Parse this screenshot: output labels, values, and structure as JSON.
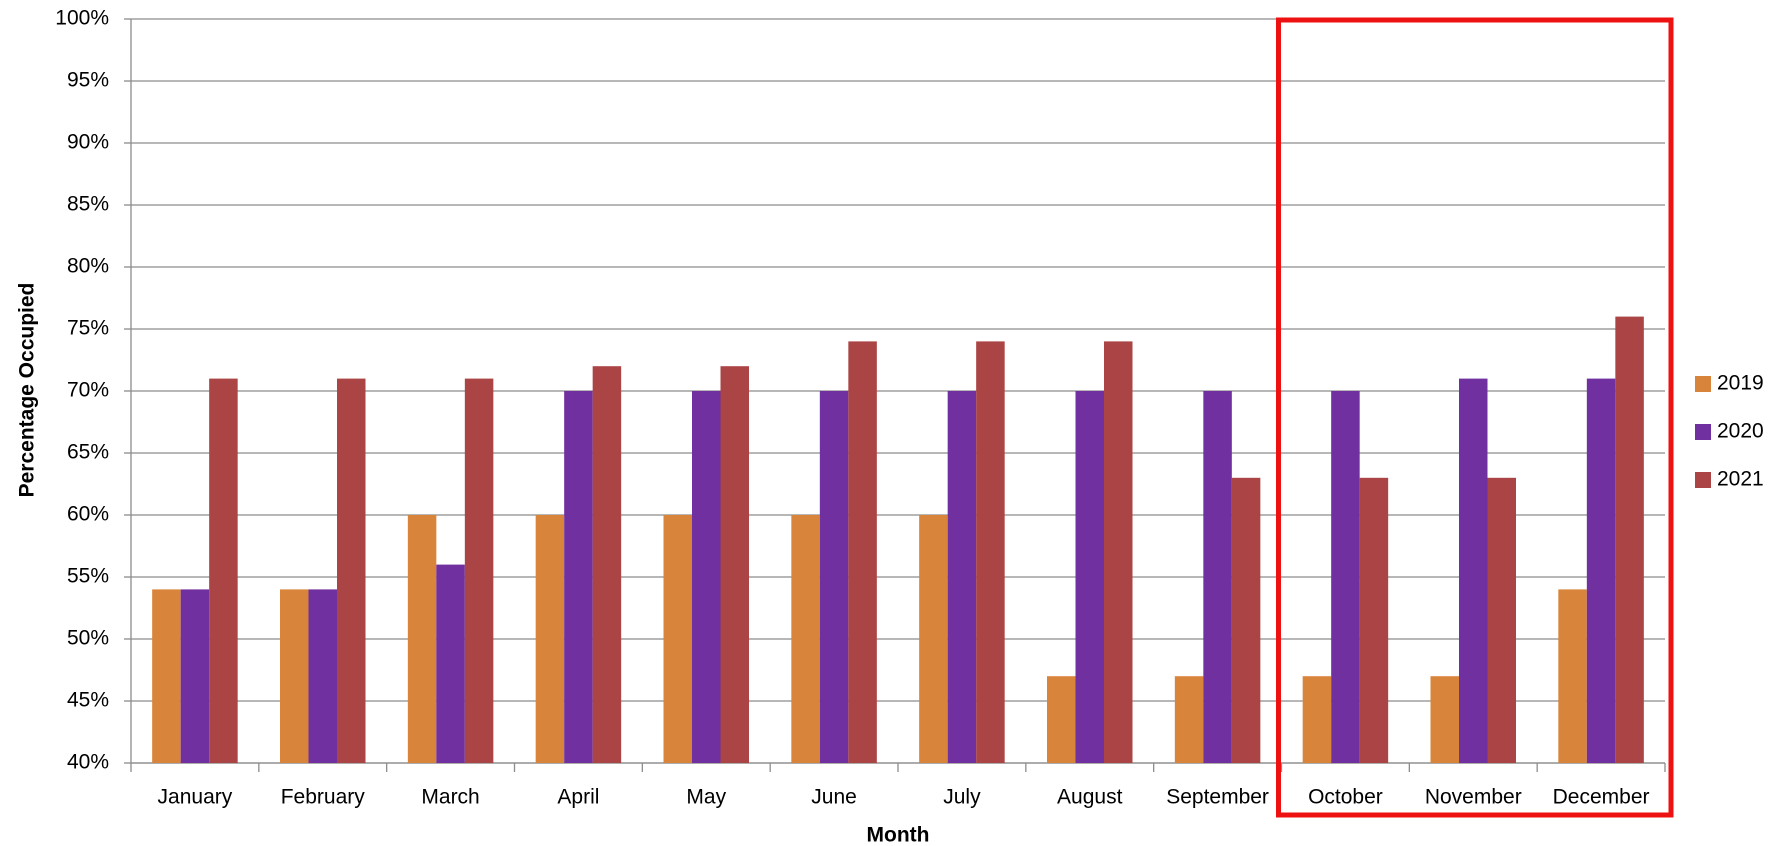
{
  "chart_data": {
    "type": "bar",
    "x_label": "Month",
    "y_label": "Percentage Occupied",
    "categories": [
      "January",
      "February",
      "March",
      "April",
      "May",
      "June",
      "July",
      "August",
      "September",
      "October",
      "November",
      "December"
    ],
    "series": [
      {
        "name": "2019",
        "color": "#d9843b",
        "values": [
          54,
          54,
          60,
          60,
          60,
          60,
          60,
          47,
          47,
          47,
          47,
          54
        ]
      },
      {
        "name": "2020",
        "color": "#7030a0",
        "values": [
          54,
          54,
          56,
          70,
          70,
          70,
          70,
          70,
          70,
          70,
          71,
          71
        ]
      },
      {
        "name": "2021",
        "color": "#ab4444",
        "values": [
          71,
          71,
          71,
          72,
          72,
          74,
          74,
          74,
          63,
          63,
          63,
          76
        ]
      }
    ],
    "ylim": [
      40,
      100
    ],
    "yticks": [
      {
        "value": 40,
        "label": "40%"
      },
      {
        "value": 45,
        "label": "45%"
      },
      {
        "value": 50,
        "label": "50%"
      },
      {
        "value": 55,
        "label": "55%"
      },
      {
        "value": 60,
        "label": "60%"
      },
      {
        "value": 65,
        "label": "65%"
      },
      {
        "value": 70,
        "label": "70%"
      },
      {
        "value": 75,
        "label": "75%"
      },
      {
        "value": 80,
        "label": "80%"
      },
      {
        "value": 85,
        "label": "85%"
      },
      {
        "value": 90,
        "label": "90%"
      },
      {
        "value": 95,
        "label": "95%"
      },
      {
        "value": 100,
        "label": "100%"
      }
    ],
    "grid": true,
    "legend": "right"
  }
}
